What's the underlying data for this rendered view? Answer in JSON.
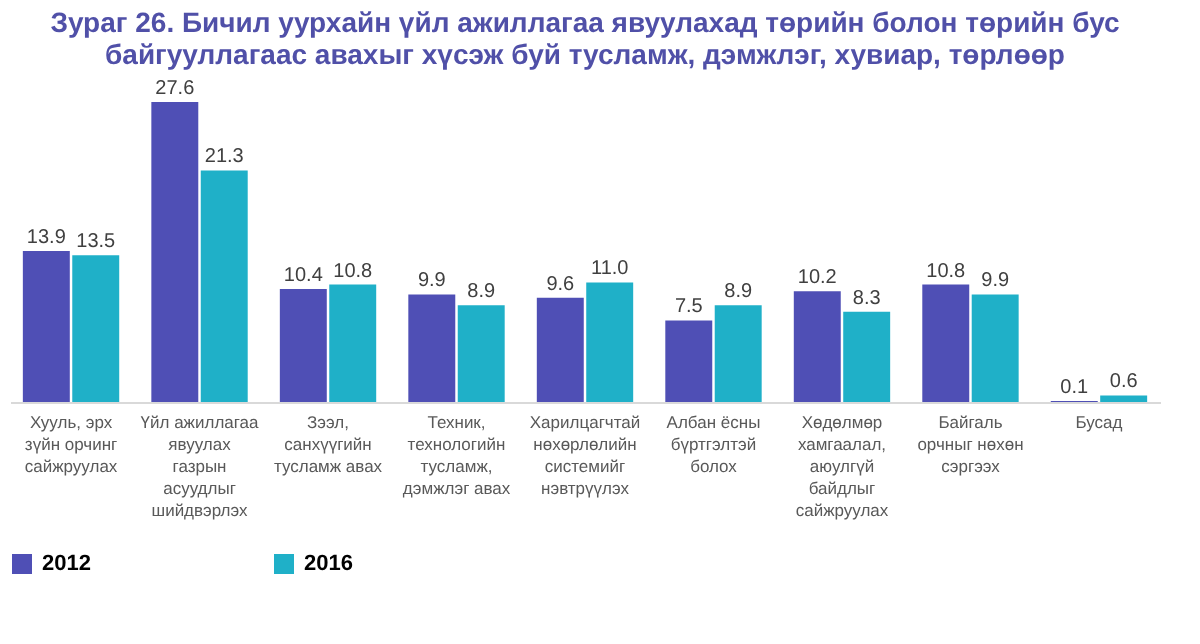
{
  "chart_data": {
    "type": "bar",
    "title": "Зураг 26. Бичил уурхайн үйл ажиллагаа явуулахад төрийн болон төрийн бус байгууллагаас авахыг хүсэж буй тусламж, дэмжлэг, хувиар, төрлөөр",
    "categories": [
      "Хууль, эрх зүйн орчинг сайжруулах",
      "Үйл ажиллагаа явуулах газрын асуудлыг шийдвэрлэх",
      "Зээл, санхүүгийн тусламж авах",
      "Техник, технологийн тусламж, дэмжлэг авах",
      "Харилцагчтай нөхөрлөлийн системийг нэвтрүүлэх",
      "Албан ёсны бүртгэлтэй болох",
      "Хөдөлмөр хамгаалал, аюулгүй байдлыг сайжруулах",
      "Байгаль орчныг нөхөн сэргээх",
      "Бусад"
    ],
    "series": [
      {
        "name": "2012",
        "color": "#4f4fb5",
        "values": [
          13.9,
          27.6,
          10.4,
          9.9,
          9.6,
          7.5,
          10.2,
          10.8,
          0.1
        ],
        "value_labels": [
          "13.9",
          "27.6",
          "10.4",
          "9.9",
          "9.6",
          "7.5",
          "10.2",
          "10.8",
          "0.1"
        ]
      },
      {
        "name": "2016",
        "color": "#1fb0c8",
        "values": [
          13.5,
          21.3,
          10.8,
          8.9,
          11.0,
          8.9,
          8.3,
          9.9,
          0.6
        ],
        "value_labels": [
          "13.5",
          "21.3",
          "10.8",
          "8.9",
          "11.0",
          "8.9",
          "8.3",
          "9.9",
          "0.6"
        ]
      }
    ],
    "legend": "bottom",
    "grid": false
  }
}
